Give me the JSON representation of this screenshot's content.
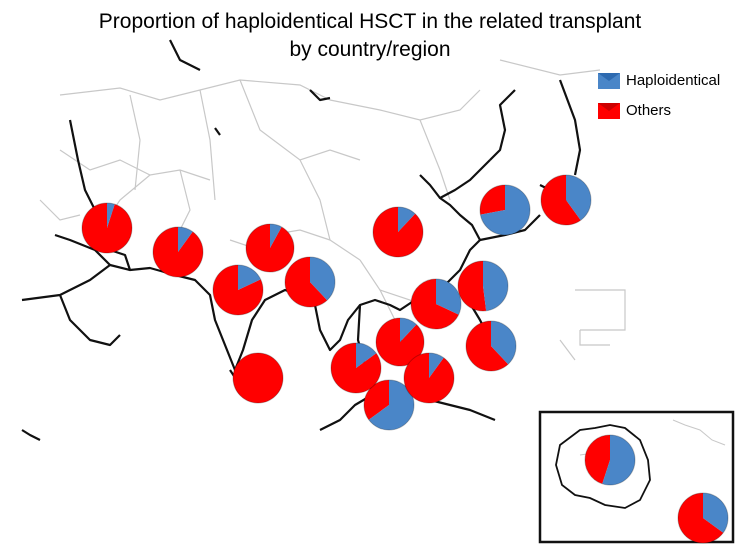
{
  "title_line1": "Proportion of haploidentical HSCT in the related transplant",
  "title_line2": "by country/region",
  "legend": {
    "haploidentical": "Haploidentical",
    "others": "Others"
  },
  "colors": {
    "haploidentical": "#4a86c8",
    "others": "#ff0000"
  },
  "chart_data": {
    "type": "pie",
    "series_names": [
      "Haploidentical",
      "Others"
    ],
    "pies": [
      {
        "haplo": 0.05
      },
      {
        "haplo": 0.1
      },
      {
        "haplo": 0.08
      },
      {
        "haplo": 0.18
      },
      {
        "haplo": 0.38
      },
      {
        "haplo": 0.12
      },
      {
        "haplo": 0.0
      },
      {
        "haplo": 0.72
      },
      {
        "haplo": 0.4
      },
      {
        "haplo": 0.48
      },
      {
        "haplo": 0.32
      },
      {
        "haplo": 0.38
      },
      {
        "haplo": 0.65
      },
      {
        "haplo": 0.15
      },
      {
        "haplo": 0.12
      },
      {
        "haplo": 0.1
      },
      {
        "haplo": 0.55
      },
      {
        "haplo": 0.35
      },
      {
        "haplo": 0.38
      }
    ]
  }
}
